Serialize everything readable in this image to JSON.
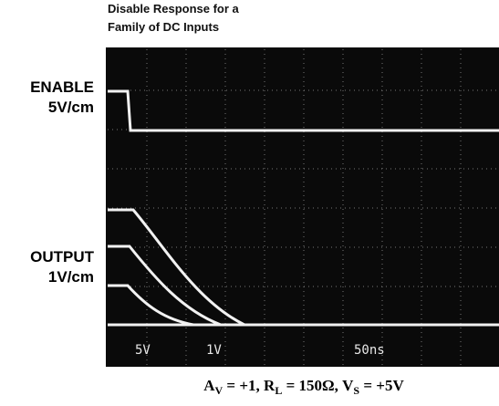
{
  "figure": {
    "title": [
      "Disable Response for a",
      "Family of DC Inputs"
    ],
    "channels": [
      {
        "name": "ENABLE",
        "scale": "5V/cm"
      },
      {
        "name": "OUTPUT",
        "scale": "1V/cm"
      }
    ],
    "screen_labels": [
      "5V",
      "1V",
      "50ns"
    ],
    "caption": [
      "A",
      "V",
      " = +1, R",
      "L",
      " = 150Ω, V",
      "S",
      " = +5V"
    ]
  }
}
